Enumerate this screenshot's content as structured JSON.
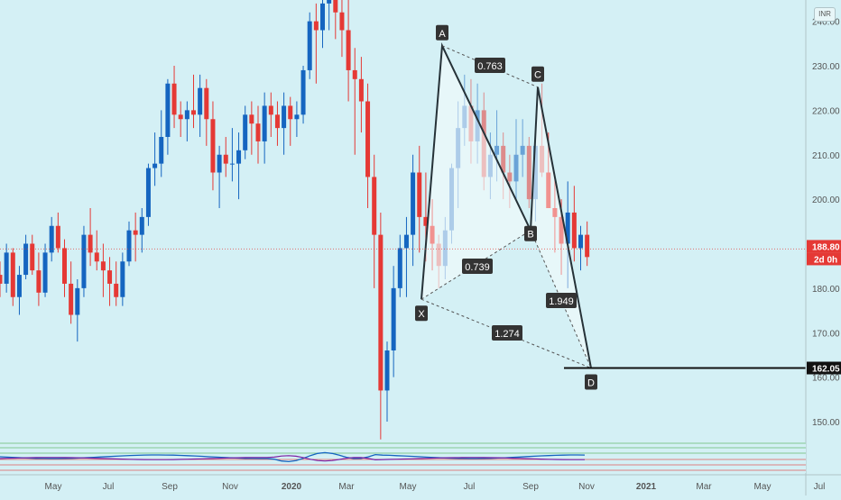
{
  "chart_data": {
    "type": "candlestick",
    "currency": "INR",
    "y_ticks": [
      "150.00",
      "160.00",
      "170.00",
      "180.00",
      "190.00",
      "200.00",
      "210.00",
      "220.00",
      "230.00",
      "240.00"
    ],
    "x_ticks": [
      "May",
      "Jul",
      "Sep",
      "Nov",
      "2020",
      "Mar",
      "May",
      "Jul",
      "Sep",
      "Nov",
      "2021",
      "Mar",
      "May",
      "Jul"
    ],
    "last_price": "188.80",
    "countdown": "2d 0h",
    "target_price": "162.05",
    "pattern_points": [
      {
        "label": "X",
        "price": 177.5
      },
      {
        "label": "A",
        "price": 234.5
      },
      {
        "label": "B",
        "price": 193.0
      },
      {
        "label": "C",
        "price": 225.2
      },
      {
        "label": "D",
        "price": 162.05
      }
    ],
    "ratios": [
      {
        "leg": "XA-B",
        "value": "0.739"
      },
      {
        "leg": "AB-C",
        "value": "0.763"
      },
      {
        "leg": "BC-D",
        "value": "1.949"
      },
      {
        "leg": "XA-D",
        "value": "1.274"
      }
    ],
    "candles": [
      [
        183,
        186,
        178,
        181
      ],
      [
        181,
        190,
        179,
        188
      ],
      [
        188,
        189,
        176,
        178
      ],
      [
        178,
        185,
        174,
        183
      ],
      [
        183,
        192,
        182,
        190
      ],
      [
        190,
        192,
        183,
        184
      ],
      [
        184,
        188,
        176,
        179
      ],
      [
        179,
        190,
        178,
        188
      ],
      [
        188,
        196,
        186,
        194
      ],
      [
        194,
        197,
        188,
        189
      ],
      [
        189,
        191,
        178,
        181
      ],
      [
        181,
        186,
        172,
        174
      ],
      [
        174,
        182,
        168,
        180
      ],
      [
        180,
        194,
        178,
        192
      ],
      [
        192,
        198,
        185,
        188
      ],
      [
        188,
        193,
        184,
        186
      ],
      [
        186,
        190,
        178,
        184
      ],
      [
        184,
        187,
        176,
        181
      ],
      [
        181,
        186,
        176,
        178
      ],
      [
        178,
        188,
        176,
        186
      ],
      [
        186,
        195,
        185,
        193
      ],
      [
        193,
        197,
        186,
        192
      ],
      [
        192,
        198,
        188,
        196
      ],
      [
        196,
        208,
        194,
        207
      ],
      [
        207,
        215,
        203,
        208
      ],
      [
        208,
        220,
        205,
        214
      ],
      [
        214,
        227,
        210,
        226
      ],
      [
        226,
        230,
        216,
        219
      ],
      [
        219,
        222,
        214,
        218
      ],
      [
        218,
        222,
        213,
        220
      ],
      [
        220,
        228,
        216,
        219
      ],
      [
        219,
        228,
        214,
        225
      ],
      [
        225,
        227,
        212,
        218
      ],
      [
        218,
        222,
        202,
        206
      ],
      [
        206,
        212,
        198,
        210
      ],
      [
        210,
        214,
        205,
        208
      ],
      [
        208,
        216,
        204,
        208
      ],
      [
        208,
        215,
        200,
        211
      ],
      [
        211,
        221,
        209,
        219
      ],
      [
        219,
        222,
        210,
        217
      ],
      [
        217,
        221,
        208,
        213
      ],
      [
        213,
        224,
        208,
        221
      ],
      [
        221,
        224,
        214,
        219
      ],
      [
        219,
        222,
        212,
        216
      ],
      [
        216,
        224,
        210,
        221
      ],
      [
        221,
        223,
        212,
        218
      ],
      [
        218,
        222,
        214,
        219
      ],
      [
        219,
        230,
        217,
        229
      ],
      [
        229,
        242,
        227,
        240
      ],
      [
        240,
        244,
        226,
        238
      ],
      [
        238,
        250,
        234,
        244
      ],
      [
        244,
        250,
        238,
        246
      ],
      [
        246,
        248,
        236,
        242
      ],
      [
        242,
        246,
        232,
        238
      ],
      [
        238,
        246,
        222,
        229
      ],
      [
        229,
        234,
        210,
        227
      ],
      [
        227,
        232,
        215,
        222
      ],
      [
        222,
        226,
        198,
        205
      ],
      [
        205,
        210,
        180,
        192
      ],
      [
        192,
        197,
        146,
        157
      ],
      [
        157,
        168,
        150,
        166
      ],
      [
        166,
        185,
        160,
        180
      ],
      [
        180,
        192,
        178,
        189
      ],
      [
        189,
        196,
        178,
        192
      ],
      [
        192,
        210,
        185,
        206
      ],
      [
        206,
        212,
        188,
        196
      ],
      [
        196,
        206,
        186,
        194
      ],
      [
        194,
        200,
        184,
        190
      ],
      [
        190,
        192,
        180,
        185
      ],
      [
        185,
        196,
        182,
        193
      ],
      [
        193,
        208,
        190,
        207
      ],
      [
        207,
        222,
        198,
        216
      ],
      [
        216,
        228,
        212,
        221
      ],
      [
        221,
        227,
        208,
        213
      ],
      [
        213,
        226,
        208,
        220
      ],
      [
        220,
        224,
        202,
        205
      ],
      [
        205,
        215,
        200,
        210
      ],
      [
        210,
        220,
        204,
        212
      ],
      [
        212,
        215,
        200,
        206
      ],
      [
        206,
        210,
        198,
        204
      ],
      [
        204,
        218,
        200,
        210
      ],
      [
        210,
        218,
        205,
        212
      ],
      [
        212,
        214,
        198,
        200
      ],
      [
        200,
        214,
        195,
        212
      ],
      [
        212,
        226,
        205,
        206
      ],
      [
        206,
        215,
        198,
        198
      ],
      [
        198,
        205,
        188,
        196
      ],
      [
        196,
        200,
        183,
        190
      ],
      [
        190,
        204,
        180,
        197
      ],
      [
        197,
        203,
        186,
        189
      ],
      [
        189,
        194,
        184,
        192
      ],
      [
        192,
        195,
        185,
        187
      ]
    ]
  }
}
